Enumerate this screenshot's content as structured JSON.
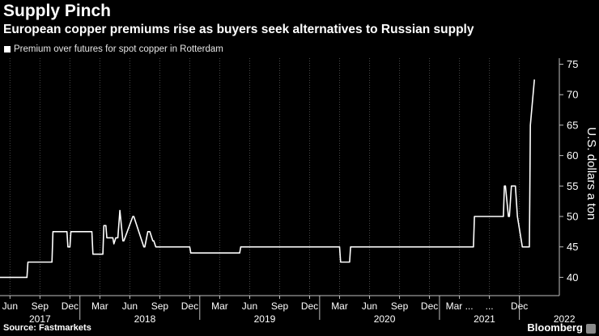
{
  "header": {
    "title": "Supply Pinch",
    "subtitle": "European copper premiums rise as buyers seek alternatives to Russian supply"
  },
  "footer": {
    "source": "Source: Fastmarkets",
    "brand": "Bloomberg"
  },
  "colors": {
    "background": "#000000",
    "line": "#ffffff",
    "grid": "#4a4a4a",
    "text": "#ffffff"
  },
  "chart_data": {
    "type": "line",
    "title": "Supply Pinch",
    "ylabel": "U.S. dollars a ton",
    "xlabel": "",
    "ylim": [
      37,
      76
    ],
    "yticks": [
      40,
      45,
      50,
      55,
      60,
      65,
      70,
      75
    ],
    "legend": "top-left",
    "xtick_labels": [
      "Jun",
      "Sep",
      "Dec",
      "Mar",
      "Jun",
      "Sep",
      "Dec",
      "Mar",
      "Jun",
      "Sep",
      "Dec",
      "Mar",
      "Jun",
      "Sep",
      "Dec",
      "Mar ...",
      "...",
      "Dec"
    ],
    "xtick_months": [
      0,
      3,
      6,
      9,
      12,
      15,
      18,
      21,
      24,
      27,
      30,
      33,
      36,
      39,
      42,
      45,
      48,
      51
    ],
    "year_labels": [
      "2017",
      "2018",
      "2019",
      "2020",
      "2021",
      "2022"
    ],
    "year_label_months": [
      3,
      13.5,
      25.5,
      37.5,
      47.5,
      55.5
    ],
    "year_boundaries": [
      7,
      19,
      31,
      43,
      51
    ],
    "xlim": [
      -1,
      55
    ],
    "series": [
      {
        "name": "Premium over futures for spot copper in Rotterdam",
        "x": [
          -1,
          1.7,
          1.8,
          4.2,
          4.3,
          5.7,
          5.8,
          6,
          6.1,
          8.2,
          8.3,
          9.3,
          9.4,
          9.6,
          9.7,
          10.3,
          10.4,
          10.6,
          10.8,
          11,
          11.3,
          11.4,
          12.3,
          12.4,
          13.4,
          13.5,
          13.8,
          14,
          14.3,
          14.4,
          14.6,
          15.3,
          15.5,
          15.7,
          15.9,
          18,
          18.1,
          23,
          23.1,
          33,
          33.1,
          34,
          34.1,
          46.4,
          46.5,
          49.4,
          49.5,
          49.6,
          49.9,
          50,
          50.2,
          50.6,
          50.8,
          51.3,
          51.4,
          52,
          52.1,
          52.5
        ],
        "y": [
          40,
          40,
          42.5,
          42.5,
          47.5,
          47.5,
          45,
          45,
          47.5,
          47.5,
          43.8,
          43.8,
          48.5,
          48.5,
          46.5,
          46.5,
          45.5,
          46.5,
          46.5,
          51,
          46,
          46,
          50,
          50,
          45,
          45,
          47.5,
          47.5,
          46,
          46,
          45,
          45,
          45,
          45,
          45,
          45,
          44,
          44,
          45,
          45,
          42.5,
          42.5,
          45,
          45,
          50,
          50,
          55,
          55,
          50,
          50,
          55,
          55,
          50,
          45,
          45,
          45,
          65,
          72.5
        ]
      }
    ]
  }
}
